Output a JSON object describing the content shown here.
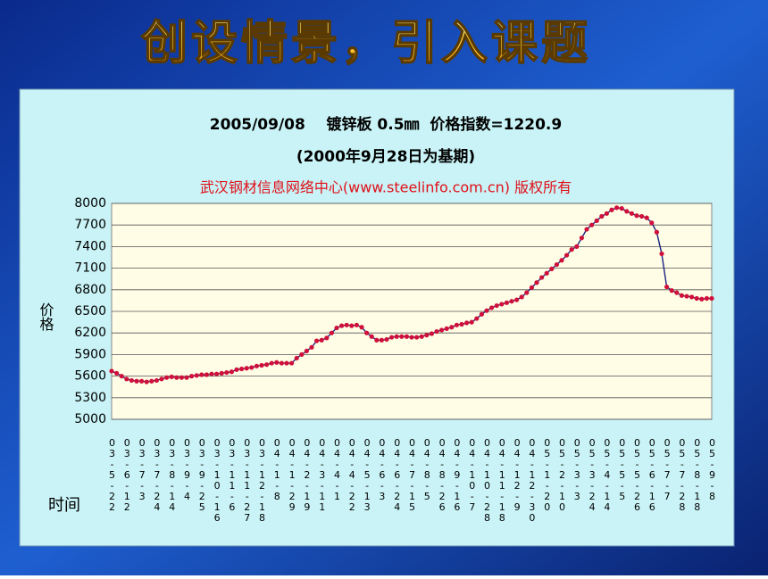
{
  "slide_title": "创设情景，引入课题",
  "chart_data": {
    "type": "line",
    "title": "2005/09/08    镀锌板 0.5㎜  价格指数=1220.9",
    "subtitle": "(2000年9月28日为基期)",
    "annotation": "武汉钢材信息网络中心(www.steelinfo.com.cn) 版权所有",
    "y_label": "价格",
    "x_label": "时间",
    "ylim": [
      5000,
      8000
    ],
    "yticks": [
      5000,
      5300,
      5600,
      5900,
      6200,
      6500,
      6800,
      7100,
      7400,
      7700,
      8000
    ],
    "grid": true,
    "markers": true,
    "marker_color": "#d0103a",
    "categories": [
      "03-5-22",
      null,
      null,
      "03-6-12",
      null,
      null,
      "03-7-3",
      null,
      null,
      "03-7-24",
      null,
      null,
      "03-8-14",
      null,
      null,
      "03-9-4",
      null,
      null,
      "03-9-25",
      null,
      null,
      "03-10-16",
      null,
      null,
      "03-11-6",
      null,
      null,
      "03-11-27",
      null,
      null,
      "03-12-18",
      null,
      null,
      "04-1-8",
      null,
      null,
      "04-1-29",
      null,
      null,
      "04-2-19",
      null,
      null,
      "04-3-11",
      null,
      null,
      "04-4-1",
      null,
      null,
      "04-4-22",
      null,
      null,
      "04-5-13",
      null,
      null,
      "04-6-3",
      null,
      null,
      "04-6-24",
      null,
      null,
      "04-7-15",
      null,
      null,
      "04-8-5",
      null,
      null,
      "04-8-26",
      null,
      null,
      "04-9-16",
      null,
      null,
      "04-10-7",
      null,
      null,
      "04-10-28",
      null,
      null,
      "04-11-18",
      null,
      null,
      "04-12-9",
      null,
      null,
      "04-12-30",
      null,
      null,
      "05-1-20",
      null,
      null,
      "05-2-10",
      null,
      null,
      "05-3-3",
      null,
      null,
      "05-3-24",
      null,
      null,
      "05-4-14",
      null,
      null,
      "05-5-5",
      null,
      null,
      "05-5-26",
      null,
      null,
      "05-6-16",
      null,
      null,
      "05-7-7",
      null,
      null,
      "05-7-28",
      null,
      null,
      "05-8-18",
      null,
      null,
      "05-9-8"
    ],
    "series": [
      {
        "color": "#1a237e",
        "values": [
          5670,
          5640,
          5600,
          5560,
          5540,
          5530,
          5530,
          5520,
          5530,
          5540,
          5560,
          5580,
          5590,
          5580,
          5580,
          5580,
          5600,
          5610,
          5620,
          5620,
          5630,
          5630,
          5640,
          5650,
          5660,
          5690,
          5700,
          5710,
          5720,
          5740,
          5750,
          5760,
          5780,
          5790,
          5780,
          5780,
          5780,
          5850,
          5900,
          5950,
          6000,
          6090,
          6100,
          6130,
          6200,
          6270,
          6300,
          6310,
          6300,
          6310,
          6280,
          6200,
          6150,
          6100,
          6100,
          6110,
          6140,
          6150,
          6150,
          6150,
          6140,
          6140,
          6150,
          6170,
          6190,
          6220,
          6240,
          6260,
          6280,
          6310,
          6320,
          6340,
          6350,
          6400,
          6460,
          6510,
          6550,
          6580,
          6600,
          6620,
          6640,
          6660,
          6700,
          6760,
          6830,
          6900,
          6970,
          7030,
          7090,
          7150,
          7210,
          7280,
          7360,
          7400,
          7520,
          7640,
          7700,
          7760,
          7820,
          7860,
          7910,
          7940,
          7930,
          7890,
          7860,
          7830,
          7820,
          7800,
          7730,
          7600,
          7300,
          6840,
          6790,
          6760,
          6720,
          6710,
          6700,
          6680,
          6670,
          6680,
          6680
        ]
      }
    ]
  }
}
